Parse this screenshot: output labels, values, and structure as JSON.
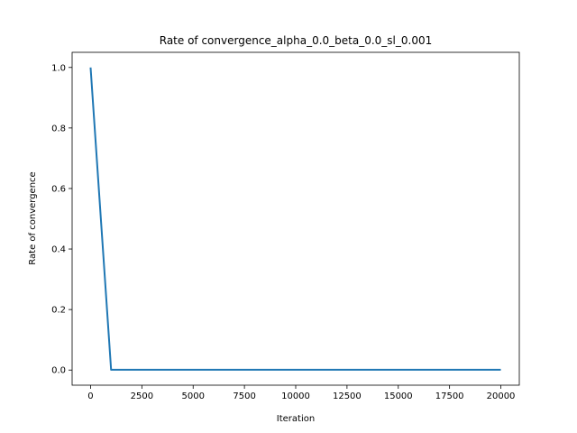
{
  "chart_data": {
    "type": "line",
    "title": "Rate of convergence_alpha_0.0_beta_0.0_sl_0.001",
    "xlabel": "Iteration",
    "ylabel": "Rate of convergence",
    "xlim": [
      -900,
      20900
    ],
    "ylim": [
      -0.05,
      1.05
    ],
    "x_ticks": [
      0,
      2500,
      5000,
      7500,
      10000,
      12500,
      15000,
      17500,
      20000
    ],
    "y_ticks": [
      0.0,
      0.2,
      0.4,
      0.6,
      0.8,
      1.0
    ],
    "x_tick_labels": [
      "0",
      "2500",
      "5000",
      "7500",
      "10000",
      "12500",
      "15000",
      "17500",
      "20000"
    ],
    "y_tick_labels": [
      "0.0",
      "0.2",
      "0.4",
      "0.6",
      "0.8",
      "1.0"
    ],
    "grid": false,
    "series": [
      {
        "color": "#1f77b4",
        "x": [
          0,
          1000,
          2000,
          3000,
          4000,
          5000,
          6000,
          7000,
          8000,
          9000,
          10000,
          11000,
          12000,
          13000,
          14000,
          15000,
          16000,
          17000,
          18000,
          19000,
          20000
        ],
        "y": [
          1.0,
          0.001,
          0.001,
          0.001,
          0.001,
          0.001,
          0.001,
          0.001,
          0.001,
          0.001,
          0.001,
          0.001,
          0.001,
          0.001,
          0.001,
          0.001,
          0.001,
          0.001,
          0.001,
          0.001,
          0.001
        ]
      }
    ]
  }
}
